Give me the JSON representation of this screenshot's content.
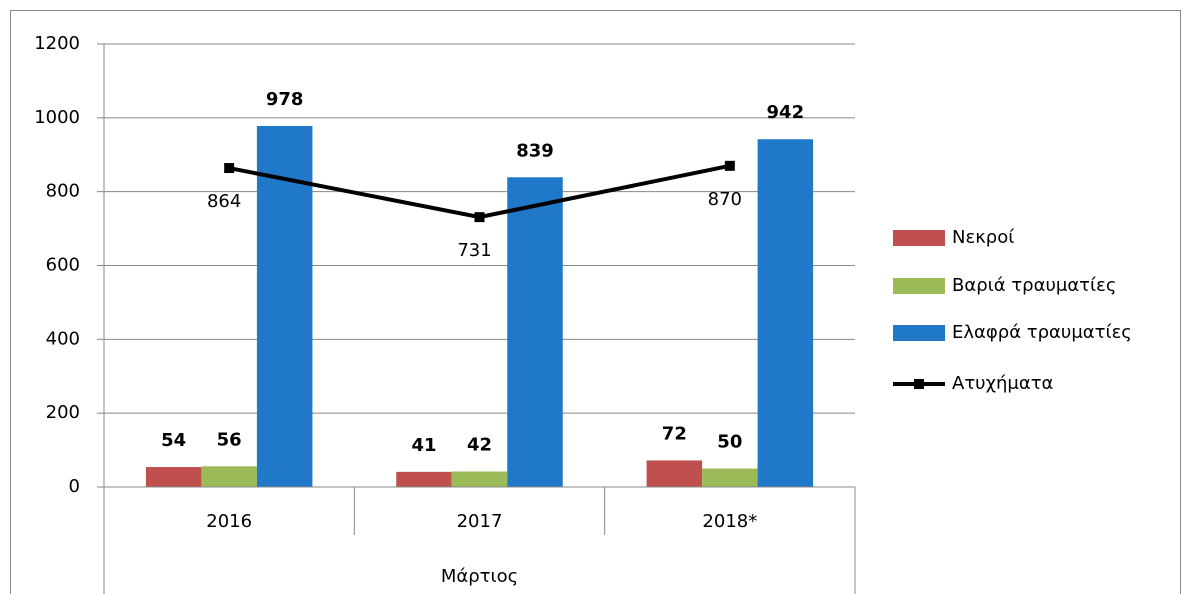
{
  "chart_data": {
    "type": "bar",
    "categories": [
      "2016",
      "2017",
      "2018*"
    ],
    "category_group": "Μάρτιος",
    "series": [
      {
        "name": "Νεκροί",
        "color": "#c0504d",
        "type": "bar",
        "values": [
          54,
          41,
          72
        ]
      },
      {
        "name": "Βαριά τραυματίες",
        "color": "#9bbb59",
        "type": "bar",
        "values": [
          56,
          42,
          50
        ]
      },
      {
        "name": "Ελαφρά τραυματίες",
        "color": "#1f78c8",
        "type": "bar",
        "values": [
          978,
          839,
          942
        ]
      },
      {
        "name": "Ατυχήματα",
        "color": "#000000",
        "type": "line",
        "values": [
          864,
          731,
          870
        ]
      }
    ],
    "ylim": [
      0,
      1200
    ],
    "yticks": [
      0,
      200,
      400,
      600,
      800,
      1000,
      1200
    ],
    "grid": true,
    "legend": "right"
  }
}
